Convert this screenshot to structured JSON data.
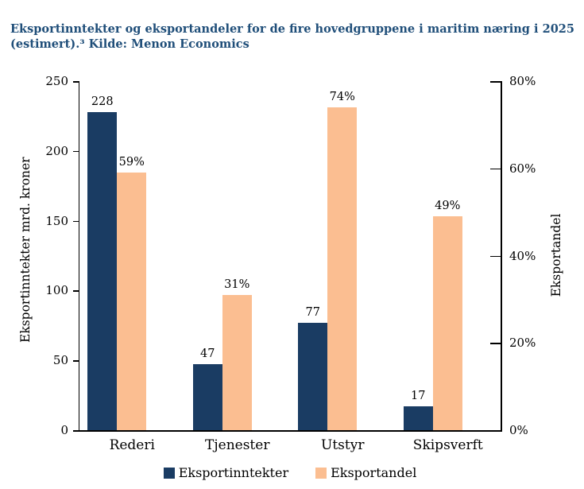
{
  "title": {
    "line1": "Eksportinntekter og eksportandeler for de fire hovedgruppene i maritim næring i 2025",
    "line2": "(estimert).³ Kilde: Menon Economics",
    "color": "#1F4E79"
  },
  "colors": {
    "navy": "#1A3C63",
    "peach": "#FBBE91",
    "axis": "#000000",
    "background": "#FFFFFF"
  },
  "chart_data": {
    "type": "bar",
    "categories": [
      "Rederi",
      "Tjenester",
      "Utstyr",
      "Skipsverft"
    ],
    "series": [
      {
        "name": "Eksportinntekter",
        "axis": "left",
        "values": [
          228,
          47,
          77,
          17
        ],
        "labels": [
          "228",
          "47",
          "77",
          "17"
        ],
        "color": "#1A3C63"
      },
      {
        "name": "Eksportandel",
        "axis": "right",
        "values": [
          59,
          31,
          74,
          49
        ],
        "labels": [
          "59%",
          "31%",
          "74%",
          "49%"
        ],
        "color": "#FBBE91"
      }
    ],
    "left_axis": {
      "title": "Eksportinntekter mrd. kroner",
      "ticks": [
        250,
        200,
        150,
        100,
        50,
        0
      ],
      "tick_labels": [
        "250",
        "200",
        "150",
        "100",
        "50",
        "0"
      ],
      "min": 0,
      "max": 250
    },
    "right_axis": {
      "title": "Eksportandel",
      "ticks": [
        80,
        60,
        40,
        20,
        0
      ],
      "tick_labels": [
        "80%",
        "60%",
        "40%",
        "20%",
        "0%"
      ],
      "min": 0,
      "max": 80
    },
    "grid": false,
    "legend_position": "bottom",
    "legend": [
      {
        "label": "Eksportinntekter",
        "color": "#1A3C63"
      },
      {
        "label": "Eksportandel",
        "color": "#FBBE91"
      }
    ]
  }
}
